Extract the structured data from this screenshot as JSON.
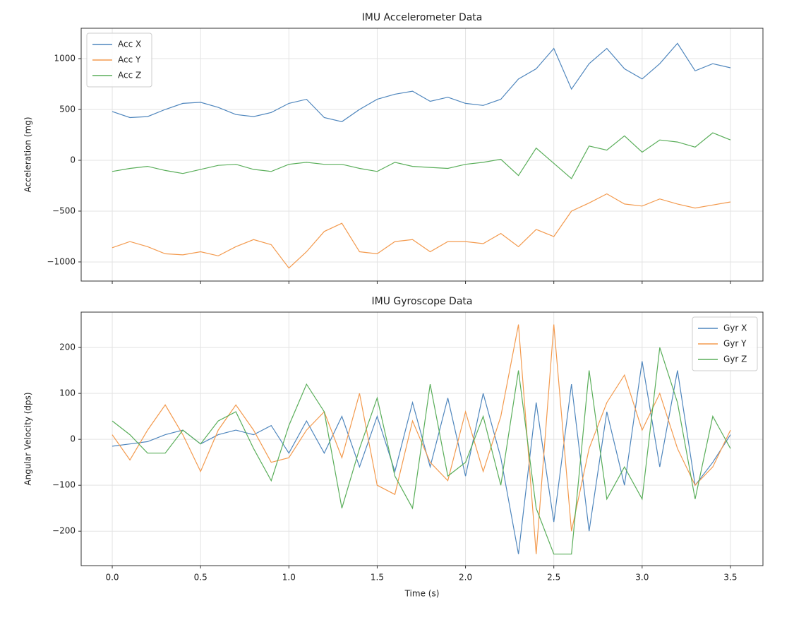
{
  "chart_data": [
    {
      "type": "line",
      "title": "IMU Accelerometer Data",
      "y_label": "Acceleration (mg)",
      "x": [
        0,
        0.1,
        0.2,
        0.3,
        0.4,
        0.5,
        0.6,
        0.7,
        0.8,
        0.9,
        1.0,
        1.1,
        1.2,
        1.3,
        1.4,
        1.5,
        1.6,
        1.7,
        1.8,
        1.9,
        2.0,
        2.1,
        2.2,
        2.3,
        2.4,
        2.5,
        2.6,
        2.7,
        2.8,
        2.9,
        3.0,
        3.1,
        3.2,
        3.3,
        3.4,
        3.5
      ],
      "series": [
        {
          "name": "Acc X",
          "color": "#4f86bd",
          "values": [
            480,
            420,
            430,
            500,
            560,
            570,
            520,
            450,
            430,
            470,
            560,
            600,
            420,
            380,
            500,
            600,
            650,
            680,
            580,
            620,
            560,
            540,
            600,
            800,
            900,
            1100,
            700,
            950,
            1100,
            900,
            800,
            950,
            1150,
            880,
            950,
            910
          ]
        },
        {
          "name": "Acc Y",
          "color": "#f39a4e",
          "values": [
            -860,
            -800,
            -850,
            -920,
            -930,
            -900,
            -940,
            -850,
            -780,
            -830,
            -1060,
            -900,
            -700,
            -620,
            -900,
            -920,
            -800,
            -780,
            -900,
            -800,
            -800,
            -820,
            -720,
            -850,
            -680,
            -750,
            -500,
            -420,
            -330,
            -430,
            -450,
            -380,
            -430,
            -470,
            -440,
            -410
          ]
        },
        {
          "name": "Acc Z",
          "color": "#5aae5a",
          "values": [
            -110,
            -80,
            -60,
            -100,
            -130,
            -90,
            -50,
            -40,
            -90,
            -110,
            -40,
            -20,
            -40,
            -40,
            -80,
            -110,
            -20,
            -60,
            -70,
            -80,
            -40,
            -20,
            10,
            -150,
            120,
            -30,
            -180,
            140,
            100,
            240,
            80,
            200,
            180,
            130,
            270,
            200
          ]
        }
      ],
      "xlim": [
        -0.176,
        3.684
      ],
      "ylim": [
        -1188,
        1299
      ],
      "xticks": [
        0,
        0.5,
        1,
        1.5,
        2,
        2.5,
        3,
        3.5
      ],
      "yticks": [
        {
          "value": -1000,
          "label": "−1000"
        },
        {
          "value": -500,
          "label": "−500"
        },
        0,
        500,
        1000
      ],
      "grid": true,
      "legend": "upper-left"
    },
    {
      "type": "line",
      "title": "IMU Gyroscope Data",
      "x_label": "Time (s)",
      "y_label": "Angular Velocity (dps)",
      "x": [
        0,
        0.1,
        0.2,
        0.3,
        0.4,
        0.5,
        0.6,
        0.7,
        0.8,
        0.9,
        1.0,
        1.1,
        1.2,
        1.3,
        1.4,
        1.5,
        1.6,
        1.7,
        1.8,
        1.9,
        2.0,
        2.1,
        2.2,
        2.3,
        2.4,
        2.5,
        2.6,
        2.7,
        2.8,
        2.9,
        3.0,
        3.1,
        3.2,
        3.3,
        3.4,
        3.5
      ],
      "series": [
        {
          "name": "Gyr X",
          "color": "#4f86bd",
          "values": [
            -15,
            -10,
            -5,
            10,
            20,
            -10,
            10,
            20,
            10,
            30,
            -30,
            40,
            -30,
            50,
            -60,
            50,
            -70,
            80,
            -60,
            90,
            -80,
            100,
            -40,
            -250,
            80,
            -180,
            120,
            -200,
            60,
            -100,
            170,
            -60,
            150,
            -100,
            -50,
            10
          ]
        },
        {
          "name": "Gyr Y",
          "color": "#f39a4e",
          "values": [
            10,
            -45,
            20,
            75,
            10,
            -70,
            20,
            75,
            20,
            -50,
            -40,
            20,
            60,
            -40,
            100,
            -100,
            -120,
            40,
            -50,
            -90,
            60,
            -70,
            50,
            250,
            -250,
            250,
            -200,
            -20,
            80,
            140,
            20,
            100,
            -20,
            -100,
            -60,
            20
          ]
        },
        {
          "name": "Gyr Z",
          "color": "#5aae5a",
          "values": [
            40,
            10,
            -30,
            -30,
            20,
            -10,
            40,
            60,
            -20,
            -90,
            30,
            120,
            60,
            -150,
            -20,
            90,
            -80,
            -150,
            120,
            -80,
            -50,
            50,
            -100,
            150,
            -150,
            -250,
            -250,
            150,
            -130,
            -60,
            -130,
            200,
            80,
            -130,
            50,
            -20
          ]
        }
      ],
      "xlim": [
        -0.176,
        3.684
      ],
      "ylim": [
        -275,
        277
      ],
      "xticks": [
        {
          "value": 0,
          "label": "0.0"
        },
        {
          "value": 0.5,
          "label": "0.5"
        },
        {
          "value": 1,
          "label": "1.0"
        },
        {
          "value": 1.5,
          "label": "1.5"
        },
        {
          "value": 2,
          "label": "2.0"
        },
        {
          "value": 2.5,
          "label": "2.5"
        },
        {
          "value": 3,
          "label": "3.0"
        },
        {
          "value": 3.5,
          "label": "3.5"
        }
      ],
      "yticks": [
        {
          "value": -200,
          "label": "−200"
        },
        {
          "value": -100,
          "label": "−100"
        },
        0,
        100,
        200
      ],
      "grid": true,
      "legend": "upper-right"
    }
  ]
}
